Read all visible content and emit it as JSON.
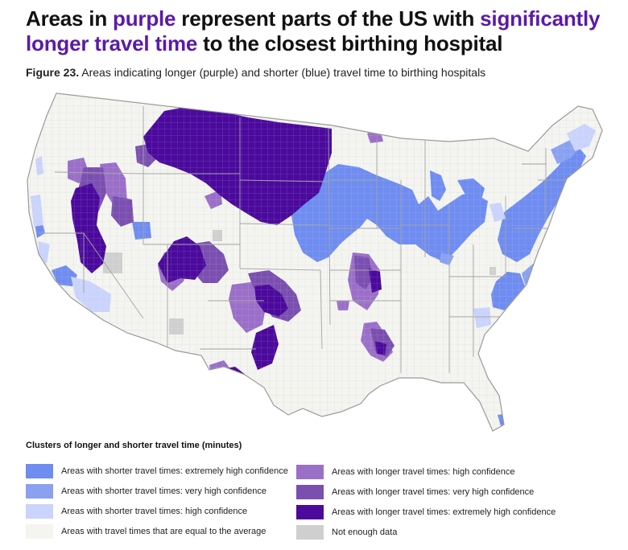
{
  "title": {
    "p1": "Areas in ",
    "h1": "purple",
    "p2": " represent parts of the US with ",
    "h2": "significantly longer travel time",
    "p3": " to the closest birthing hospital"
  },
  "figure": {
    "label": "Figure 23.",
    "caption": " Areas indicating longer (purple) and shorter (blue) travel time to birthing hospitals"
  },
  "legend": {
    "title": "Clusters of longer and shorter travel time (minutes)",
    "items": [
      {
        "label": "Areas with shorter travel times: extremely high confidence",
        "color": "#6f8cf0"
      },
      {
        "label": "Areas with shorter travel times: very high confidence",
        "color": "#8aa1f2"
      },
      {
        "label": "Areas with shorter travel times: high confidence",
        "color": "#c9d3fb"
      },
      {
        "label": "Areas with travel times that are equal to the average",
        "color": "#f4f4f0"
      },
      {
        "label": "Areas with longer travel times: high confidence",
        "color": "#9a6fc8"
      },
      {
        "label": "Areas with longer travel times: very high confidence",
        "color": "#7a4fb0"
      },
      {
        "label": "Areas with longer travel times: extremely high confidence",
        "color": "#4b0a9c"
      },
      {
        "label": "Not enough data",
        "color": "#cfcfcf"
      }
    ]
  },
  "colors": {
    "base": "#f4f4f0",
    "county_border": "#d6d6d2",
    "state_border": "#9c9c9c",
    "title_highlight": "#5b1aa8"
  }
}
